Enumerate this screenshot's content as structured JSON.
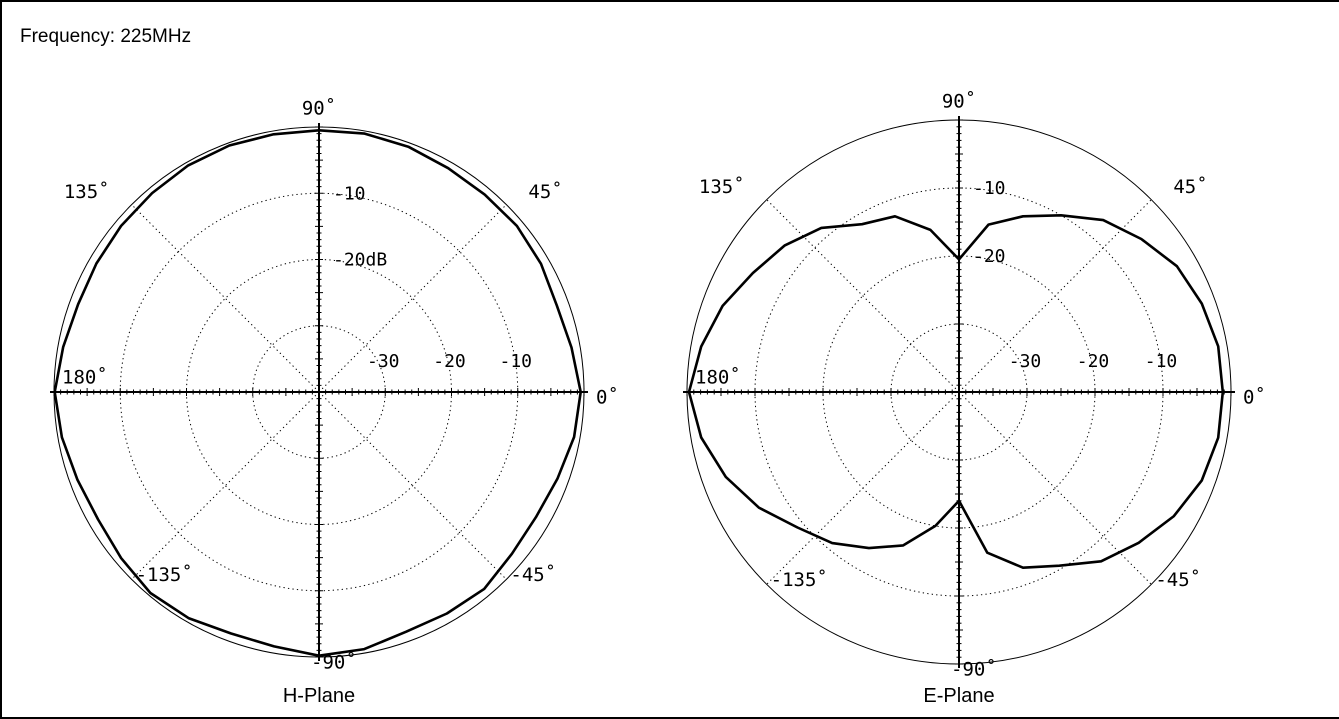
{
  "header": {
    "frequency_label": "Frequency: 225MHz"
  },
  "colors": {
    "line": "#000000",
    "background": "#ffffff"
  },
  "chart_data": [
    {
      "type": "polar-line",
      "name": "H-Plane",
      "title": "H-Plane",
      "unit": "dB",
      "r_range_db": [
        -40,
        0
      ],
      "rings_db": [
        -10,
        -20,
        -30
      ],
      "radial_lines_deg": [
        45,
        135,
        225,
        315
      ],
      "angle_labels": [
        {
          "deg": 90,
          "text": "90˚"
        },
        {
          "deg": 45,
          "text": "45˚"
        },
        {
          "deg": 135,
          "text": "135˚"
        },
        {
          "deg": 0,
          "text": "0˚"
        },
        {
          "deg": 180,
          "text": "180˚"
        },
        {
          "deg": 225,
          "text": "-135˚"
        },
        {
          "deg": 315,
          "text": "-45˚"
        },
        {
          "deg": 270,
          "text": "-90˚"
        }
      ],
      "ring_labels_vertical": [
        {
          "db": -10,
          "text": "-10"
        },
        {
          "db": -20,
          "text": "-20dB"
        }
      ],
      "ring_labels_horizontal": [
        {
          "db": -30,
          "text": "-30"
        },
        {
          "db": -20,
          "text": "-20"
        },
        {
          "db": -10,
          "text": "-10"
        }
      ],
      "angles_deg": [
        0,
        10,
        20,
        30,
        40,
        50,
        60,
        70,
        80,
        90,
        100,
        110,
        120,
        130,
        140,
        150,
        160,
        170,
        180,
        190,
        200,
        210,
        220,
        230,
        240,
        250,
        260,
        270,
        280,
        290,
        300,
        310,
        320,
        330,
        340,
        350
      ],
      "gain_db": [
        -0.5,
        -1.3,
        -1.8,
        -1.3,
        -1.0,
        -1.1,
        -1.0,
        -0.6,
        -0.4,
        -0.5,
        -0.5,
        -0.4,
        -0.5,
        -0.8,
        -1.0,
        -1.2,
        -1.3,
        -0.8,
        -0.1,
        -0.6,
        -1.2,
        -1.5,
        -1.0,
        -0.4,
        -0.6,
        -1.2,
        -1.0,
        -0.2,
        -0.6,
        -1.5,
        -1.4,
        -1.2,
        -2.0,
        -2.2,
        -1.7,
        -0.9
      ]
    },
    {
      "type": "polar-line",
      "name": "E-Plane",
      "title": "E-Plane",
      "unit": "dB",
      "r_range_db": [
        -40,
        0
      ],
      "rings_db": [
        -10,
        -20,
        -30
      ],
      "radial_lines_deg": [
        45,
        135,
        225,
        315
      ],
      "angle_labels": [
        {
          "deg": 90,
          "text": "90˚"
        },
        {
          "deg": 45,
          "text": "45˚"
        },
        {
          "deg": 135,
          "text": "135˚"
        },
        {
          "deg": 0,
          "text": "0˚"
        },
        {
          "deg": 180,
          "text": "180˚"
        },
        {
          "deg": 225,
          "text": "-135˚"
        },
        {
          "deg": 315,
          "text": "-45˚"
        },
        {
          "deg": 270,
          "text": "-90˚"
        }
      ],
      "ring_labels_vertical": [
        {
          "db": -10,
          "text": "-10"
        },
        {
          "db": -20,
          "text": "-20"
        }
      ],
      "ring_labels_horizontal": [
        {
          "db": -30,
          "text": "-30"
        },
        {
          "db": -20,
          "text": "-20"
        },
        {
          "db": -10,
          "text": "-10"
        }
      ],
      "angles_deg": [
        0,
        10,
        20,
        30,
        40,
        50,
        60,
        70,
        80,
        90,
        100,
        110,
        120,
        130,
        140,
        150,
        160,
        170,
        180,
        190,
        200,
        210,
        220,
        230,
        240,
        250,
        260,
        270,
        280,
        290,
        300,
        310,
        320,
        330,
        340,
        350
      ],
      "gain_db": [
        -1.2,
        -1.3,
        -2.0,
        -3.0,
        -5.0,
        -7.0,
        -10.0,
        -12.5,
        -15.0,
        -20.5,
        -15.8,
        -12.5,
        -11.5,
        -8.5,
        -6.5,
        -5.0,
        -3.0,
        -1.5,
        -0.3,
        -1.5,
        -3.5,
        -6.0,
        -9.0,
        -11.0,
        -13.5,
        -16.0,
        -20.0,
        -24.0,
        -16.0,
        -12.5,
        -10.5,
        -7.5,
        -5.5,
        -3.5,
        -2.0,
        -1.3
      ]
    }
  ],
  "plane_labels": {
    "h": "H-Plane",
    "e": "E-Plane"
  }
}
